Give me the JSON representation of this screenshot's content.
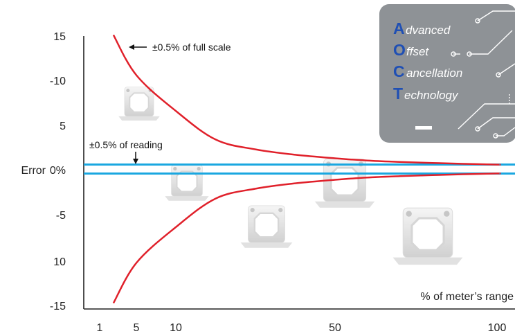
{
  "chart_data": {
    "type": "line",
    "title": "",
    "xlabel": "% of meter’s range",
    "ylabel": "Error",
    "ylabel_extra": "0%",
    "x_tick_labels": [
      "1",
      "5",
      "10",
      "50",
      "100"
    ],
    "x_tick_values": [
      1,
      5,
      10,
      50,
      100
    ],
    "y_tick_labels": [
      "15",
      "-10",
      "5",
      "0%",
      "-5",
      "10",
      "-15"
    ],
    "ylim": [
      -15,
      15
    ],
    "series": [
      {
        "name": "±0.5% of full scale",
        "style": "envelope",
        "color": "#e0202a",
        "x": [
          2.5,
          5,
          10,
          20,
          30,
          40,
          50,
          60,
          70,
          80,
          90,
          100
        ],
        "y": [
          15,
          10.5,
          6.5,
          3.3,
          2.2,
          1.6,
          1.2,
          0.95,
          0.8,
          0.68,
          0.58,
          0.5
        ]
      },
      {
        "name": "±0.5% of reading",
        "style": "band",
        "color": "#1aa7e0",
        "x": [
          0,
          100
        ],
        "y": [
          0.5,
          0.5
        ]
      }
    ],
    "annotations": [
      {
        "text": "±0.5% of full scale"
      },
      {
        "text": "±0.5% of reading"
      }
    ]
  },
  "badge": {
    "letters": [
      {
        "cap": "A",
        "rest": "dvanced"
      },
      {
        "cap": "O",
        "rest": "ffset"
      },
      {
        "cap": "C",
        "rest": "ancellation"
      },
      {
        "cap": "T",
        "rest": "echnology"
      }
    ],
    "cap_color": "#1f4fb4",
    "bg_color": "#8e9296"
  },
  "colors": {
    "curve": "#e0202a",
    "band": "#1aa7e0",
    "axis": "#222222"
  }
}
